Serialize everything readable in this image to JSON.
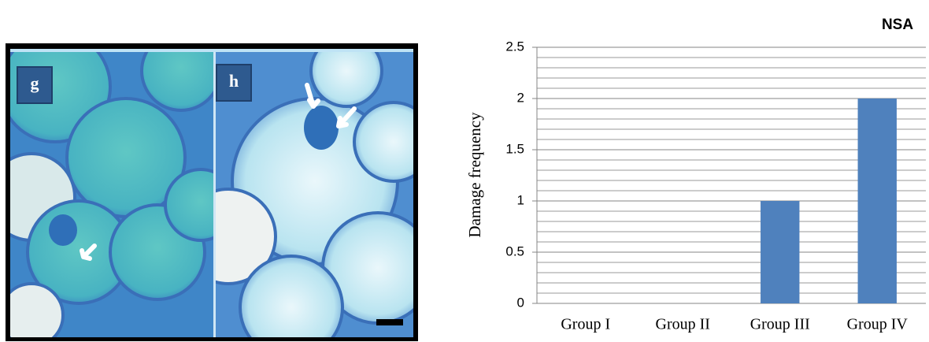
{
  "panels": {
    "labels": [
      "g",
      "h"
    ]
  },
  "chart_data": {
    "type": "bar",
    "title": "NSA",
    "y_label": "Damage frequency",
    "categories": [
      "Group I",
      "Group II",
      "Group III",
      "Group IV"
    ],
    "values": [
      0,
      0,
      1,
      2
    ],
    "color": "#4f81bd",
    "ylim": [
      0,
      2.5
    ],
    "yticks": [
      0,
      0.5,
      1,
      1.5,
      2,
      2.5
    ],
    "minor_yticks": [
      0.1,
      0.2,
      0.3,
      0.4,
      0.6,
      0.7,
      0.8,
      0.9,
      1.1,
      1.2,
      1.3,
      1.4,
      1.6,
      1.7,
      1.8,
      1.9,
      2.1,
      2.2,
      2.3,
      2.4
    ],
    "grid": true
  }
}
